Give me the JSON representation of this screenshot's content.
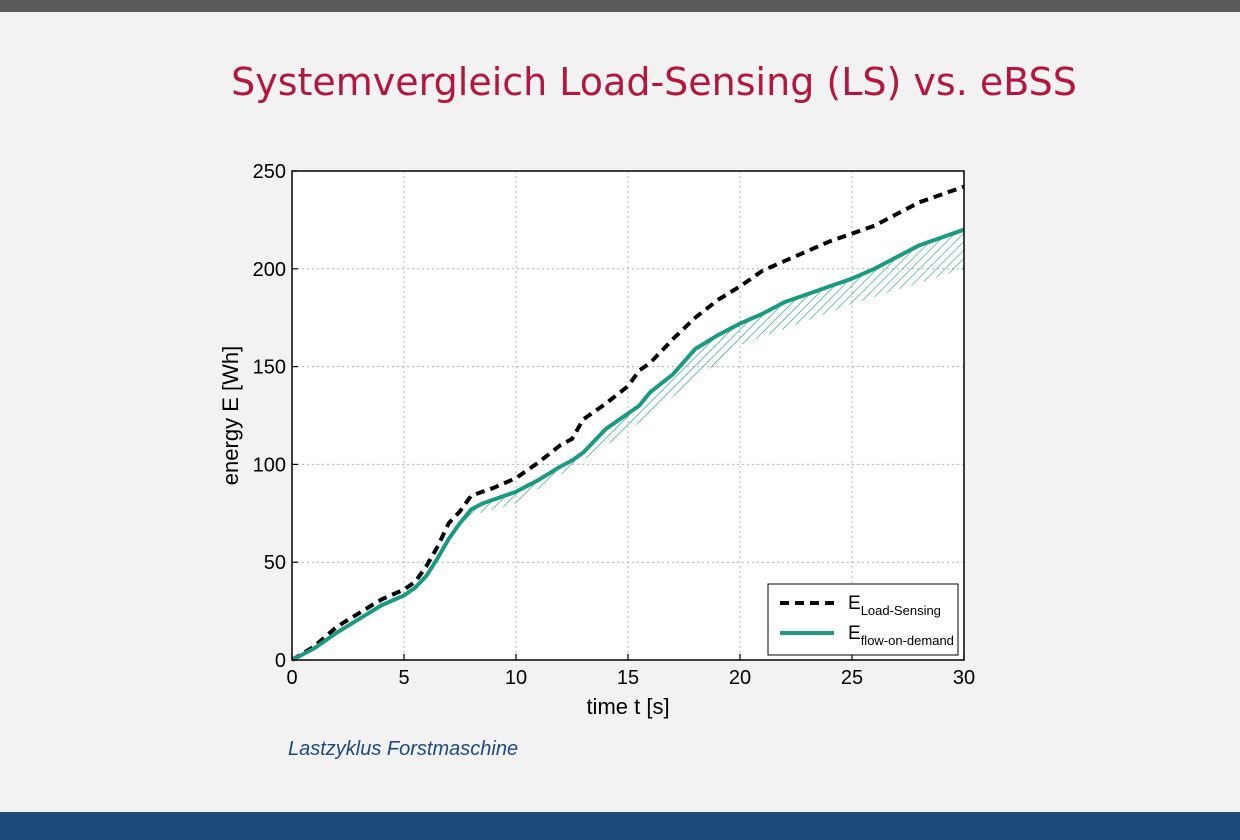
{
  "slide": {
    "title": "Systemvergleich Load-Sensing (LS) vs. eBSS",
    "caption": "Lastzyklus Forstmaschine"
  },
  "colors": {
    "title": "#b3173f",
    "caption": "#1f497d",
    "top_bar": "#5a5a5a",
    "bottom_bar": "#1c4a7a",
    "series_ls": "#000000",
    "series_fod": "#1a9a80"
  },
  "chart_data": {
    "type": "line",
    "title": "",
    "xlabel": "time t [s]",
    "ylabel": "energy E [Wh]",
    "xlim": [
      0,
      30
    ],
    "ylim": [
      0,
      250
    ],
    "xticks": [
      "0",
      "5",
      "10",
      "15",
      "20",
      "25",
      "30"
    ],
    "yticks": [
      "0",
      "50",
      "100",
      "150",
      "200",
      "250"
    ],
    "grid": true,
    "legend_position": "bottom-right",
    "series": [
      {
        "name": "E",
        "subscript": "Load-Sensing",
        "style": "dashed",
        "x": [
          0,
          1,
          2,
          3,
          4,
          5,
          5.5,
          6,
          6.5,
          7,
          7.5,
          8,
          8.5,
          9,
          10,
          11,
          12,
          12.5,
          13,
          14,
          15,
          15.5,
          16,
          17,
          18,
          19,
          20,
          21,
          22,
          23,
          24,
          25,
          26,
          27,
          28,
          29,
          30
        ],
        "y": [
          0,
          7,
          17,
          24,
          31,
          36,
          40,
          48,
          58,
          70,
          76,
          84,
          86,
          88,
          93,
          101,
          110,
          113,
          123,
          131,
          140,
          148,
          152,
          164,
          175,
          184,
          191,
          199,
          204,
          209,
          214,
          218,
          222,
          228,
          234,
          238,
          242
        ]
      },
      {
        "name": "E",
        "subscript": "flow-on-demand",
        "style": "solid",
        "x": [
          0,
          1,
          2,
          3,
          4,
          5,
          5.5,
          6,
          6.5,
          7,
          7.5,
          8,
          8.5,
          9,
          10,
          11,
          12,
          12.5,
          13,
          14,
          15,
          15.5,
          16,
          17,
          18,
          19,
          20,
          21,
          22,
          23,
          24,
          25,
          26,
          27,
          28,
          29,
          30
        ],
        "y": [
          0,
          6,
          14,
          21,
          28,
          33,
          37,
          43,
          52,
          62,
          70,
          77,
          80,
          82,
          86,
          92,
          99,
          102,
          106,
          118,
          126,
          130,
          137,
          146,
          159,
          166,
          172,
          177,
          183,
          187,
          191,
          195,
          200,
          206,
          212,
          216,
          220
        ]
      }
    ],
    "hatched_region": {
      "x": [
        5,
        8,
        10,
        15,
        20,
        25,
        30
      ],
      "y_lower": [
        31,
        74,
        80,
        117,
        161,
        182,
        200
      ]
    }
  }
}
